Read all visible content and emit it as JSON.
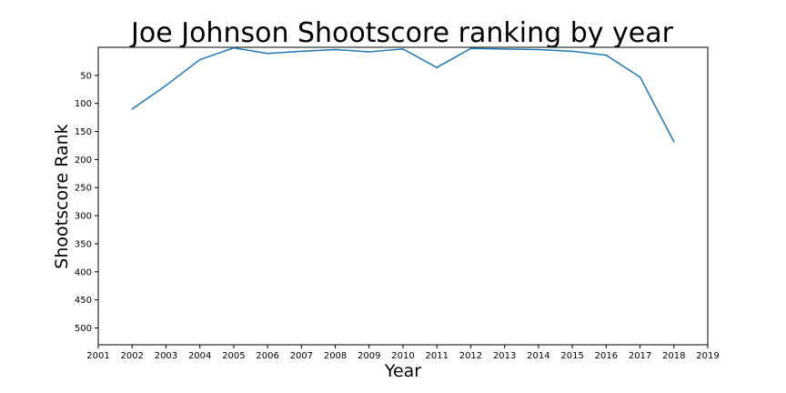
{
  "chart_data": {
    "type": "line",
    "title": "Joe Johnson Shootscore ranking by year",
    "xlabel": "Year",
    "ylabel": "Shootscore Rank",
    "xlim": [
      2001,
      2019
    ],
    "ylim": [
      530,
      0
    ],
    "y_inverted": true,
    "grid": false,
    "x_ticks": [
      2001,
      2002,
      2003,
      2004,
      2005,
      2006,
      2007,
      2008,
      2009,
      2010,
      2011,
      2012,
      2013,
      2014,
      2015,
      2016,
      2017,
      2018,
      2019
    ],
    "y_ticks": [
      50,
      100,
      150,
      200,
      250,
      300,
      350,
      400,
      450,
      500
    ],
    "line_color": "#1f77b4",
    "series": [
      {
        "x": [
          2002,
          2003,
          2004,
          2005,
          2006,
          2007,
          2008,
          2009,
          2010,
          2011,
          2012,
          2013,
          2014,
          2015,
          2016,
          2017,
          2018
        ],
        "values": [
          110,
          68,
          22,
          1,
          11,
          7,
          4,
          8,
          3,
          36,
          2,
          3,
          4,
          7,
          14,
          53,
          168
        ]
      }
    ]
  }
}
